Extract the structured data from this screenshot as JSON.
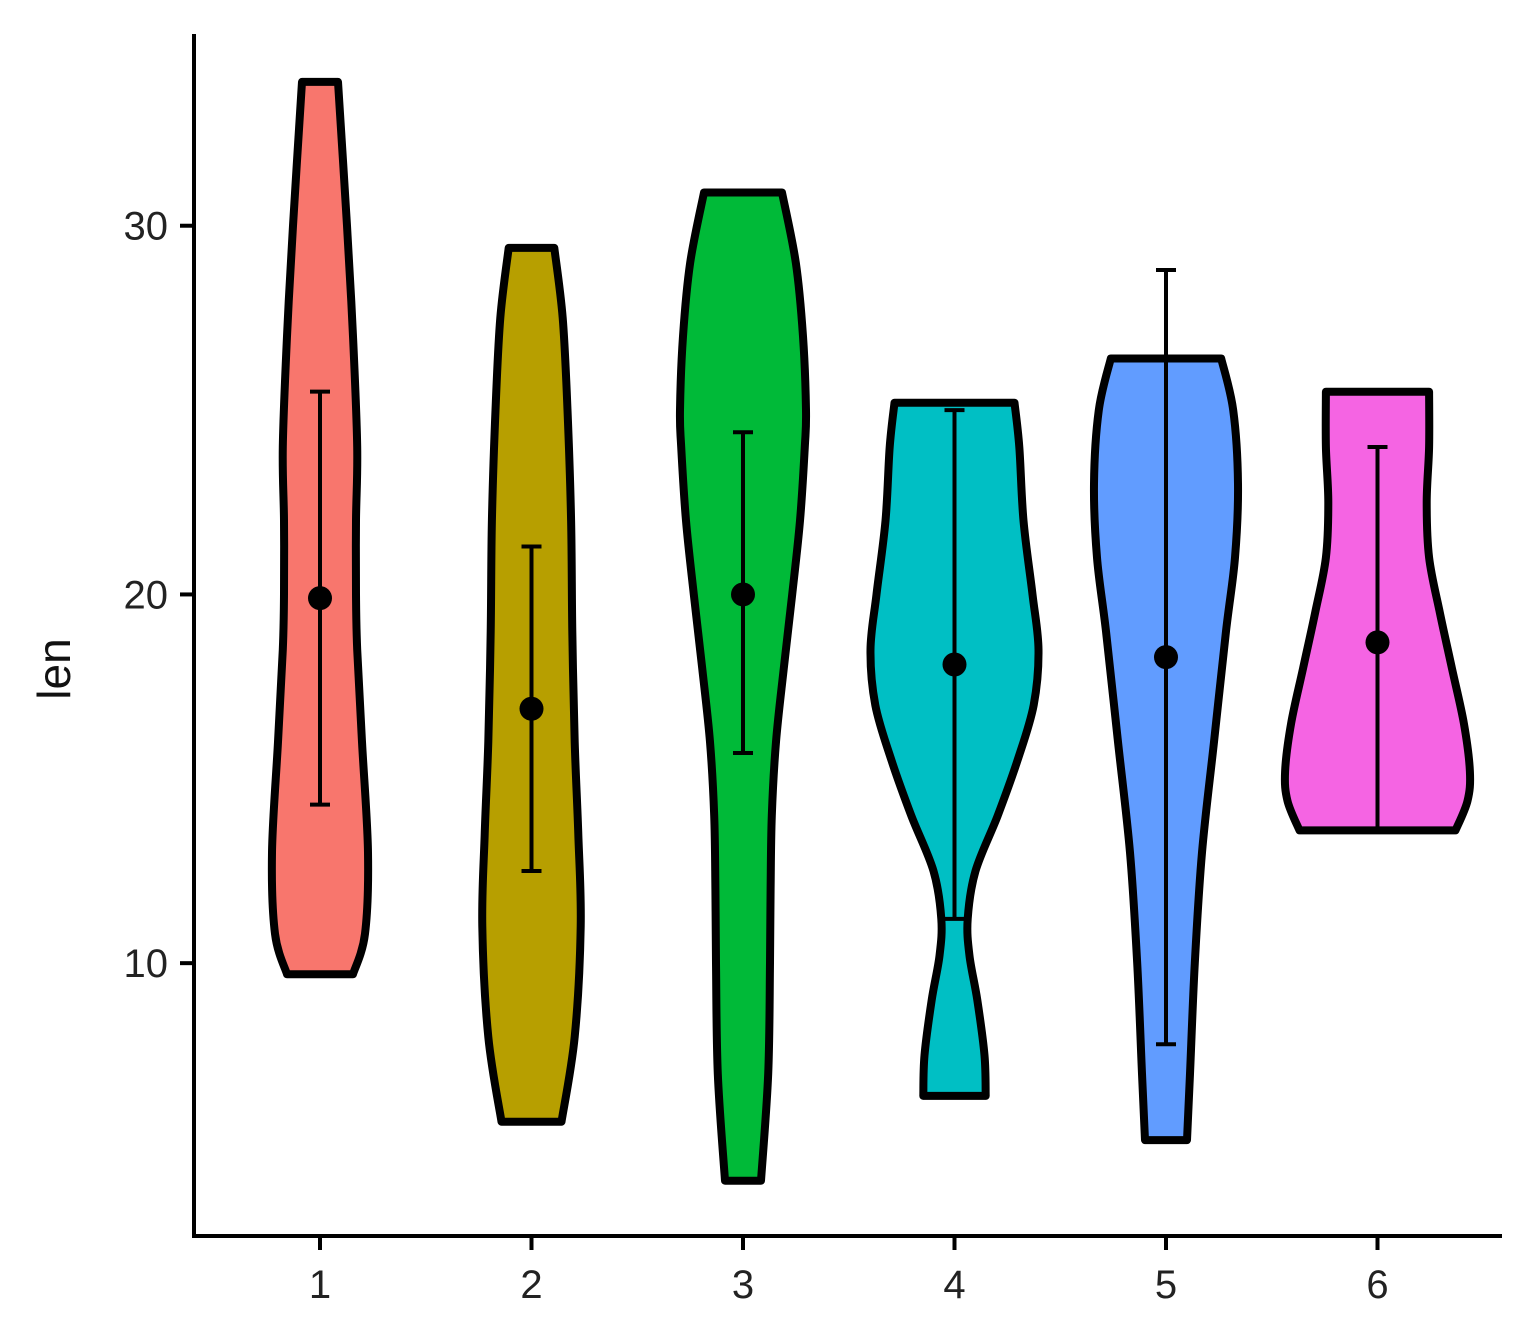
{
  "chart_data": {
    "type": "violin",
    "xlabel": "",
    "ylabel": "len",
    "categories": [
      "1",
      "2",
      "3",
      "4",
      "5",
      "6"
    ],
    "ylim": [
      2.6,
      35.2
    ],
    "y_ticks": [
      10,
      20,
      30
    ],
    "grid": false,
    "legend": "none",
    "outline_color": "#000000",
    "series": [
      {
        "category": "1",
        "color": "#F8766D",
        "min": 9.7,
        "max": 33.9,
        "mean": 19.9,
        "error_low": 14.3,
        "error_high": 25.5,
        "density_y": [
          9.7,
          10.8,
          13.0,
          16.0,
          18.5,
          20.0,
          22.0,
          24.0,
          27.0,
          30.0,
          33.9
        ],
        "density_w": [
          0.55,
          0.75,
          0.8,
          0.7,
          0.62,
          0.6,
          0.6,
          0.62,
          0.55,
          0.45,
          0.3
        ]
      },
      {
        "category": "2",
        "color": "#B79F00",
        "min": 5.7,
        "max": 29.4,
        "mean": 16.9,
        "error_low": 12.5,
        "error_high": 21.3,
        "density_y": [
          5.7,
          8.0,
          11.0,
          13.5,
          16.0,
          19.0,
          22.0,
          25.0,
          27.5,
          29.4
        ],
        "density_w": [
          0.5,
          0.72,
          0.82,
          0.78,
          0.72,
          0.68,
          0.66,
          0.6,
          0.52,
          0.38
        ]
      },
      {
        "category": "3",
        "color": "#00BA38",
        "min": 4.1,
        "max": 30.9,
        "mean": 20.0,
        "error_low": 15.7,
        "error_high": 24.4,
        "density_y": [
          4.1,
          7.0,
          10.0,
          12.0,
          14.0,
          16.0,
          18.0,
          20.0,
          22.0,
          24.0,
          25.0,
          27.0,
          29.0,
          30.9
        ],
        "density_w": [
          0.3,
          0.42,
          0.45,
          0.46,
          0.48,
          0.55,
          0.68,
          0.82,
          0.95,
          1.03,
          1.05,
          1.0,
          0.88,
          0.65
        ]
      },
      {
        "category": "4",
        "color": "#00BFC4",
        "min": 6.4,
        "max": 25.2,
        "mean": 18.1,
        "error_low": 11.2,
        "error_high": 25.0,
        "density_y": [
          6.4,
          7.5,
          9.0,
          10.2,
          11.2,
          12.5,
          14.0,
          15.5,
          17.0,
          18.5,
          20.0,
          22.0,
          24.0,
          25.2
        ],
        "density_w": [
          0.52,
          0.5,
          0.38,
          0.25,
          0.22,
          0.35,
          0.72,
          1.05,
          1.32,
          1.4,
          1.3,
          1.15,
          1.08,
          1.0
        ]
      },
      {
        "category": "5",
        "color": "#619CFF",
        "min": 5.2,
        "max": 26.4,
        "mean": 18.3,
        "error_low": 7.8,
        "error_high": 28.8,
        "density_y": [
          5.2,
          7.0,
          10.0,
          13.0,
          16.0,
          19.0,
          21.0,
          23.0,
          25.0,
          26.4
        ],
        "density_w": [
          0.35,
          0.4,
          0.48,
          0.6,
          0.8,
          1.0,
          1.15,
          1.2,
          1.12,
          0.92
        ]
      },
      {
        "category": "6",
        "color": "#F564E3",
        "min": 13.6,
        "max": 25.5,
        "mean": 18.7,
        "error_low": 13.6,
        "error_high": 24.0,
        "density_y": [
          13.6,
          14.4,
          15.2,
          16.5,
          18.0,
          19.5,
          21.0,
          22.5,
          24.0,
          25.5
        ],
        "density_w": [
          1.3,
          1.5,
          1.54,
          1.44,
          1.24,
          1.04,
          0.86,
          0.82,
          0.86,
          0.86
        ]
      }
    ]
  }
}
